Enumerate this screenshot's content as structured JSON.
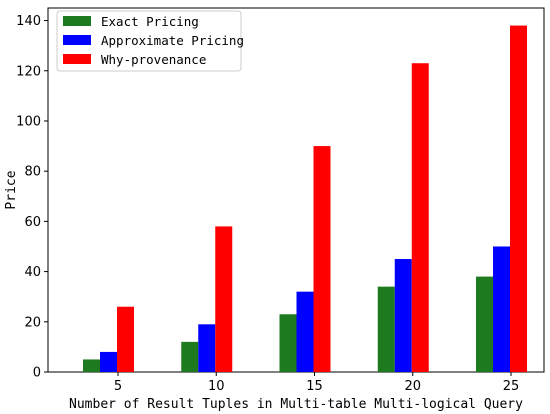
{
  "chart_data": {
    "type": "bar",
    "xlabel": "Number of Result Tuples in Multi-table Multi-logical Query",
    "ylabel": "Price",
    "categories": [
      "5",
      "10",
      "15",
      "20",
      "25"
    ],
    "ylim": [
      0,
      145
    ],
    "yticks": [
      0,
      20,
      40,
      60,
      80,
      100,
      120,
      140
    ],
    "series": [
      {
        "name": "Exact Pricing",
        "color": "#1e7a1e",
        "values": [
          5,
          12,
          23,
          34,
          38
        ]
      },
      {
        "name": "Approximate Pricing",
        "color": "#0000ff",
        "values": [
          8,
          19,
          32,
          45,
          50
        ]
      },
      {
        "name": "Why-provenance",
        "color": "#ff0000",
        "values": [
          26,
          58,
          90,
          123,
          138
        ]
      }
    ],
    "legend": "top-left",
    "grid": false
  }
}
